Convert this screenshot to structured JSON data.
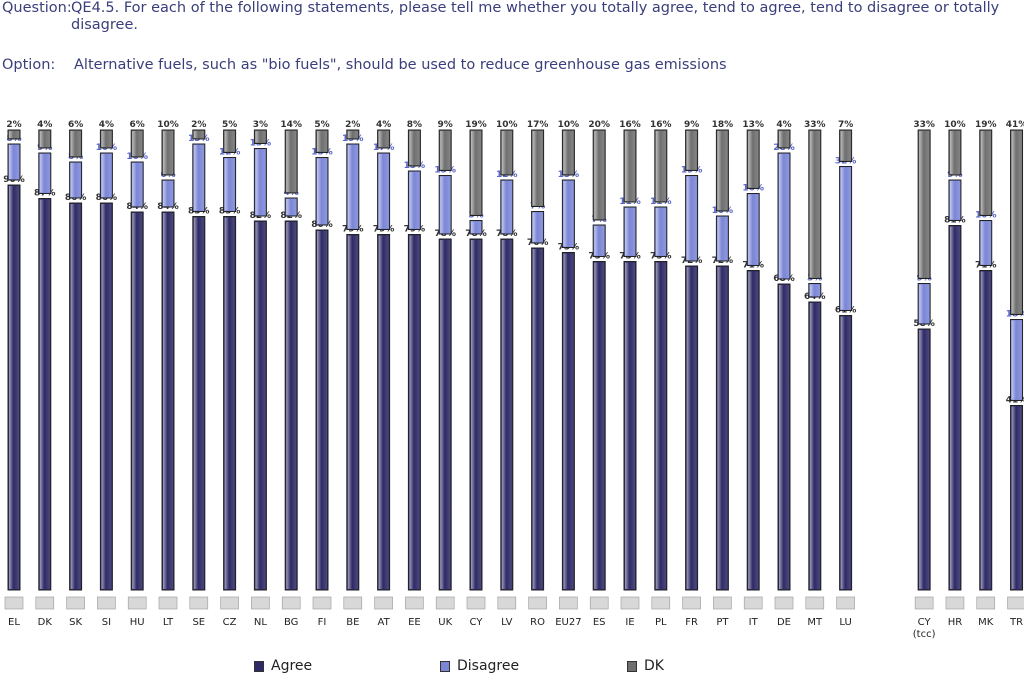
{
  "header": {
    "question_label": "Question:",
    "question_text": "QE4.5. For each of the following statements, please tell me whether you totally agree, tend to agree, tend to disagree or totally disagree.",
    "option_label": "Option:",
    "option_text": "Alternative fuels, such as \"bio fuels\", should be used to reduce greenhouse gas emissions"
  },
  "colors": {
    "agree": "#2e2a66",
    "disagree": "#7b86d6",
    "dk": "#6f6f6f"
  },
  "legend": [
    {
      "key": "agree",
      "label": "Agree"
    },
    {
      "key": "disagree",
      "label": "Disagree"
    },
    {
      "key": "dk",
      "label": "DK"
    }
  ],
  "chart_data": {
    "type": "bar",
    "title": "",
    "stacked": true,
    "unit": "%",
    "categories": [
      "EL",
      "DK",
      "SK",
      "SI",
      "HU",
      "LT",
      "SE",
      "CZ",
      "NL",
      "BG",
      "FI",
      "BE",
      "AT",
      "EE",
      "UK",
      "CY",
      "LV",
      "RO",
      "EU27",
      "ES",
      "IE",
      "PL",
      "FR",
      "PT",
      "IT",
      "DE",
      "MT",
      "LU",
      "CY (tcc)",
      "HR",
      "MK",
      "TR"
    ],
    "series": [
      {
        "name": "Agree",
        "key": "agree",
        "values": [
          90,
          87,
          86,
          86,
          84,
          84,
          83,
          83,
          82,
          82,
          80,
          79,
          79,
          79,
          78,
          78,
          78,
          76,
          75,
          73,
          73,
          73,
          72,
          72,
          71,
          68,
          64,
          61,
          58,
          81,
          71,
          41
        ]
      },
      {
        "name": "Disagree",
        "key": "disagree",
        "values": [
          8,
          9,
          8,
          10,
          10,
          6,
          15,
          12,
          15,
          4,
          15,
          19,
          17,
          13,
          13,
          3,
          12,
          7,
          15,
          7,
          11,
          11,
          19,
          10,
          16,
          28,
          3,
          32,
          9,
          9,
          10,
          18
        ]
      },
      {
        "name": "DK",
        "key": "dk",
        "values": [
          2,
          4,
          6,
          4,
          6,
          10,
          2,
          5,
          3,
          14,
          5,
          2,
          4,
          8,
          9,
          19,
          10,
          17,
          10,
          20,
          16,
          16,
          9,
          18,
          13,
          4,
          33,
          7,
          33,
          10,
          19,
          41
        ]
      }
    ],
    "ylim": [
      0,
      100
    ],
    "legend_position": "bottom"
  }
}
